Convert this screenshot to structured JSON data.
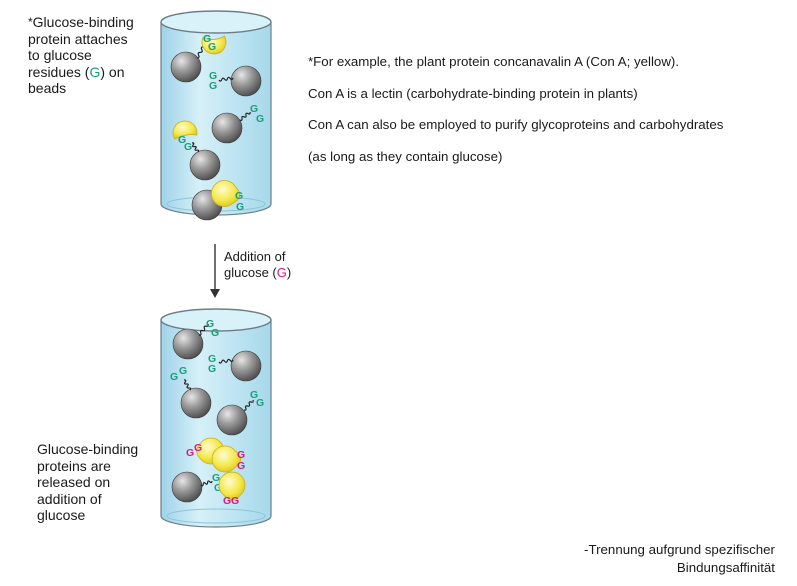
{
  "top_label": {
    "star": "*",
    "line1": "Glucose-binding",
    "line2": "protein attaches",
    "line3": "to glucose",
    "line4_prefix": "residues (",
    "line4_g": "G",
    "line4_suffix": ") on",
    "line5": "beads"
  },
  "arrow_label": {
    "line1": "Addition of",
    "line2_prefix": "glucose (",
    "line2_g": "G",
    "line2_suffix": ")"
  },
  "bottom_label": {
    "line1": "Glucose-binding",
    "line2": "proteins are",
    "line3": "released on",
    "line4": "addition of",
    "line5": "glucose"
  },
  "notes": [
    "*For example, the plant protein concanavalin A (Con A; yellow).",
    "Con A is a lectin (carbohydrate-binding protein in plants)",
    "Con A can also be employed to purify glycoproteins and carbohydrates",
    "(as long as they contain glucose)"
  ],
  "footer": {
    "line1": "-Trennung aufgrund spezifischer",
    "line2": "Bindungsaffinität"
  },
  "glyph": "G",
  "colors": {
    "glucose_bound": "#1b9d7b",
    "glucose_free": "#d81b7d",
    "lectin": "#f2e53c",
    "bead": "#8a8a8a",
    "column_fill": "#bfe6f3",
    "column_edge": "#6c7f88"
  }
}
